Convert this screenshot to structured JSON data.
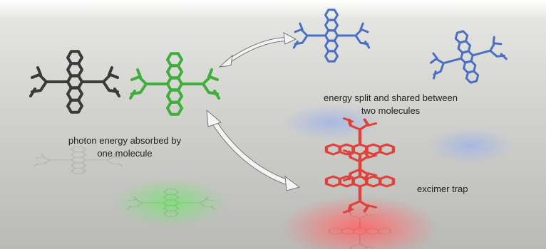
{
  "labels": {
    "absorbed": [
      "photon energy absorbed by",
      "one molecule"
    ],
    "split": [
      "energy split and shared between",
      "two molecules"
    ],
    "trap": [
      "excimer trap"
    ]
  }
}
